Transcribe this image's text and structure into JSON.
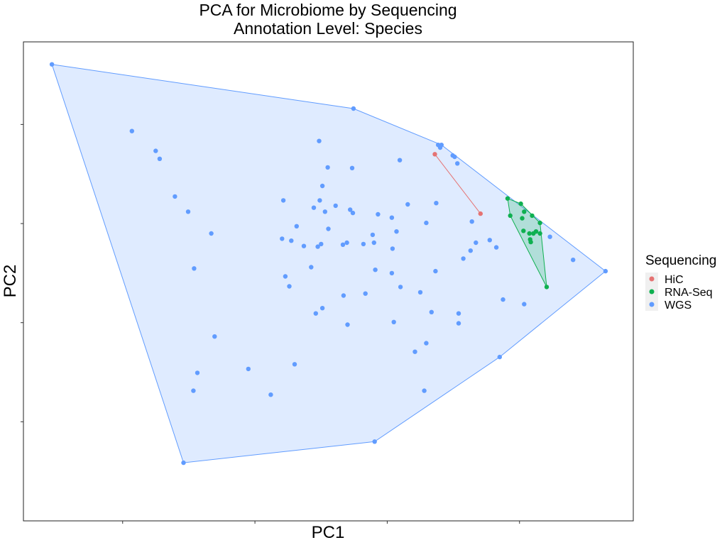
{
  "chart_data": {
    "type": "scatter",
    "title": "PCA for Microbiome by Sequencing",
    "subtitle": "Annotation Level: Species",
    "xlabel": "PC1",
    "ylabel": "PC2",
    "xlim": [
      0,
      92.2
    ],
    "ylim": [
      -80,
      -7.5
    ],
    "grid": false,
    "hulls": true,
    "legend": {
      "title": "Sequencing",
      "position": "right"
    },
    "series": [
      {
        "name": "HiC",
        "color": "#e57373",
        "points": [
          [
            62.2,
            -24.5
          ],
          [
            69.1,
            -33.5
          ]
        ]
      },
      {
        "name": "RNA-Seq",
        "color": "#0fb050",
        "points": [
          [
            73.2,
            -31.2
          ],
          [
            75.2,
            -32.0
          ],
          [
            73.6,
            -33.8
          ],
          [
            75.7,
            -33.2
          ],
          [
            75.4,
            -34.2
          ],
          [
            76.9,
            -33.8
          ],
          [
            78.1,
            -34.9
          ],
          [
            75.6,
            -36.1
          ],
          [
            76.5,
            -36.5
          ],
          [
            77.1,
            -36.5
          ],
          [
            77.5,
            -36.2
          ],
          [
            78.1,
            -36.5
          ],
          [
            76.6,
            -37.4
          ],
          [
            76.7,
            -37.8
          ],
          [
            79.1,
            -44.6
          ]
        ]
      },
      {
        "name": "WGS",
        "color": "#619cff",
        "points": [
          [
            4.3,
            -10.9
          ],
          [
            49.9,
            -17.6
          ],
          [
            16.4,
            -21.0
          ],
          [
            44.7,
            -22.5
          ],
          [
            20.0,
            -24.0
          ],
          [
            20.6,
            -25.2
          ],
          [
            62.7,
            -23.1
          ],
          [
            63.2,
            -23.1
          ],
          [
            63.0,
            -23.5
          ],
          [
            64.9,
            -24.7
          ],
          [
            65.2,
            -24.9
          ],
          [
            65.6,
            -25.9
          ],
          [
            46.0,
            -26.5
          ],
          [
            45.2,
            -29.3
          ],
          [
            22.9,
            -30.9
          ],
          [
            24.9,
            -33.2
          ],
          [
            28.4,
            -36.5
          ],
          [
            25.8,
            -41.8
          ],
          [
            28.9,
            -52.1
          ],
          [
            34.0,
            -57.0
          ],
          [
            25.7,
            -60.3
          ],
          [
            37.4,
            -60.9
          ],
          [
            39.3,
            -31.5
          ],
          [
            44.8,
            -31.5
          ],
          [
            43.9,
            -32.6
          ],
          [
            47.2,
            -32.3
          ],
          [
            45.6,
            -33.2
          ],
          [
            49.8,
            -33.4
          ],
          [
            58.1,
            -32.1
          ],
          [
            60.9,
            -34.9
          ],
          [
            55.7,
            -34.1
          ],
          [
            53.6,
            -33.6
          ],
          [
            62.4,
            -31.9
          ],
          [
            67.8,
            -34.7
          ],
          [
            41.3,
            -35.4
          ],
          [
            46.1,
            -35.8
          ],
          [
            39.1,
            -37.3
          ],
          [
            40.5,
            -37.6
          ],
          [
            48.9,
            -37.9
          ],
          [
            52.8,
            -36.7
          ],
          [
            56.4,
            -36.2
          ],
          [
            70.5,
            -37.5
          ],
          [
            44.5,
            -38.5
          ],
          [
            45.0,
            -38.1
          ],
          [
            48.3,
            -38.2
          ],
          [
            51.4,
            -38.1
          ],
          [
            53.0,
            -37.9
          ],
          [
            55.8,
            -38.8
          ],
          [
            71.5,
            -38.6
          ],
          [
            68.4,
            -37.9
          ],
          [
            67.6,
            -39.1
          ],
          [
            66.5,
            -40.3
          ],
          [
            43.5,
            -41.6
          ],
          [
            39.6,
            -43.0
          ],
          [
            40.2,
            -44.5
          ],
          [
            55.7,
            -42.5
          ],
          [
            53.2,
            -42.0
          ],
          [
            62.3,
            -42.2
          ],
          [
            57.0,
            -44.6
          ],
          [
            60.0,
            -45.4
          ],
          [
            48.4,
            -45.9
          ],
          [
            51.7,
            -45.6
          ],
          [
            72.5,
            -46.5
          ],
          [
            75.7,
            -47.2
          ],
          [
            45.2,
            -47.8
          ],
          [
            44.2,
            -48.6
          ],
          [
            56.0,
            -49.9
          ],
          [
            61.7,
            -48.4
          ],
          [
            65.8,
            -48.6
          ],
          [
            65.8,
            -50.1
          ],
          [
            60.9,
            -53.1
          ],
          [
            59.2,
            -54.4
          ],
          [
            41.0,
            -56.3
          ],
          [
            79.6,
            -37.0
          ],
          [
            83.1,
            -40.5
          ],
          [
            88.0,
            -42.2
          ],
          [
            49.0,
            -50.3
          ],
          [
            53.1,
            -68.0
          ],
          [
            60.6,
            -60.3
          ],
          [
            72.0,
            -55.2
          ],
          [
            24.2,
            -71.2
          ],
          [
            42.4,
            -38.4
          ],
          [
            49.4,
            -32.9
          ],
          [
            49.7,
            -26.6
          ],
          [
            26.3,
            -57.6
          ],
          [
            56.9,
            -25.4
          ]
        ]
      }
    ]
  }
}
